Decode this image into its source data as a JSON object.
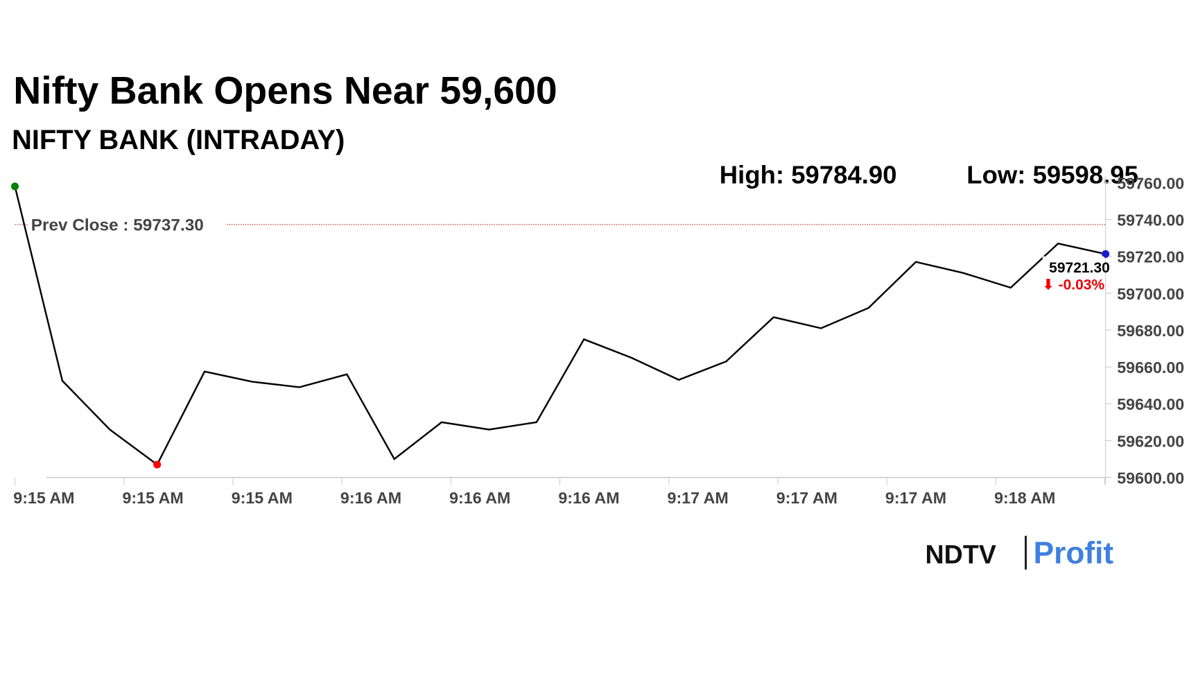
{
  "chart_data": {
    "type": "line",
    "title": "Nifty Bank Opens Near 59,600",
    "subtitle": "NIFTY BANK (INTRADAY)",
    "high_label": "High: 59784.90",
    "low_label": "Low: 59598.95",
    "prev_close": {
      "value": 59737.3,
      "label": "Prev Close : 59737.30"
    },
    "change_label": "⬇ -0.03%",
    "xtick_labels": [
      "9:15 AM",
      "9:15 AM",
      "9:15 AM",
      "9:16 AM",
      "9:16 AM",
      "9:16 AM",
      "9:17 AM",
      "9:17 AM",
      "9:17 AM",
      "9:18 AM"
    ],
    "series": [
      {
        "name": "NIFTY BANK",
        "color": "#000000",
        "values": [
          59758,
          59652.5,
          59626,
          59607,
          59657.5,
          59652,
          59649,
          59656,
          59610,
          59630,
          59626,
          59630,
          59675,
          59665,
          59653,
          59663,
          59687,
          59681,
          59692,
          59717,
          59711,
          59703,
          59727,
          59721.3
        ],
        "value_labels": [
          null,
          null,
          null,
          null,
          null,
          null,
          null,
          null,
          null,
          null,
          null,
          null,
          null,
          null,
          null,
          null,
          null,
          null,
          null,
          null,
          null,
          null,
          null,
          "59721.30"
        ]
      }
    ],
    "ylim": [
      59600,
      59760
    ],
    "yticks": [
      {
        "value": 59600,
        "label": "59600.00"
      },
      {
        "value": 59620,
        "label": "59620.00"
      },
      {
        "value": 59640,
        "label": "59640.00"
      },
      {
        "value": 59660,
        "label": "59660.00"
      },
      {
        "value": 59680,
        "label": "59680.00"
      },
      {
        "value": 59700,
        "label": "59700.00"
      },
      {
        "value": 59720,
        "label": "59720.00"
      },
      {
        "value": 59740,
        "label": "59740.00"
      },
      {
        "value": 59760,
        "label": "59760.00"
      }
    ],
    "logo": {
      "left": "NDTV",
      "right": "Profit"
    }
  }
}
